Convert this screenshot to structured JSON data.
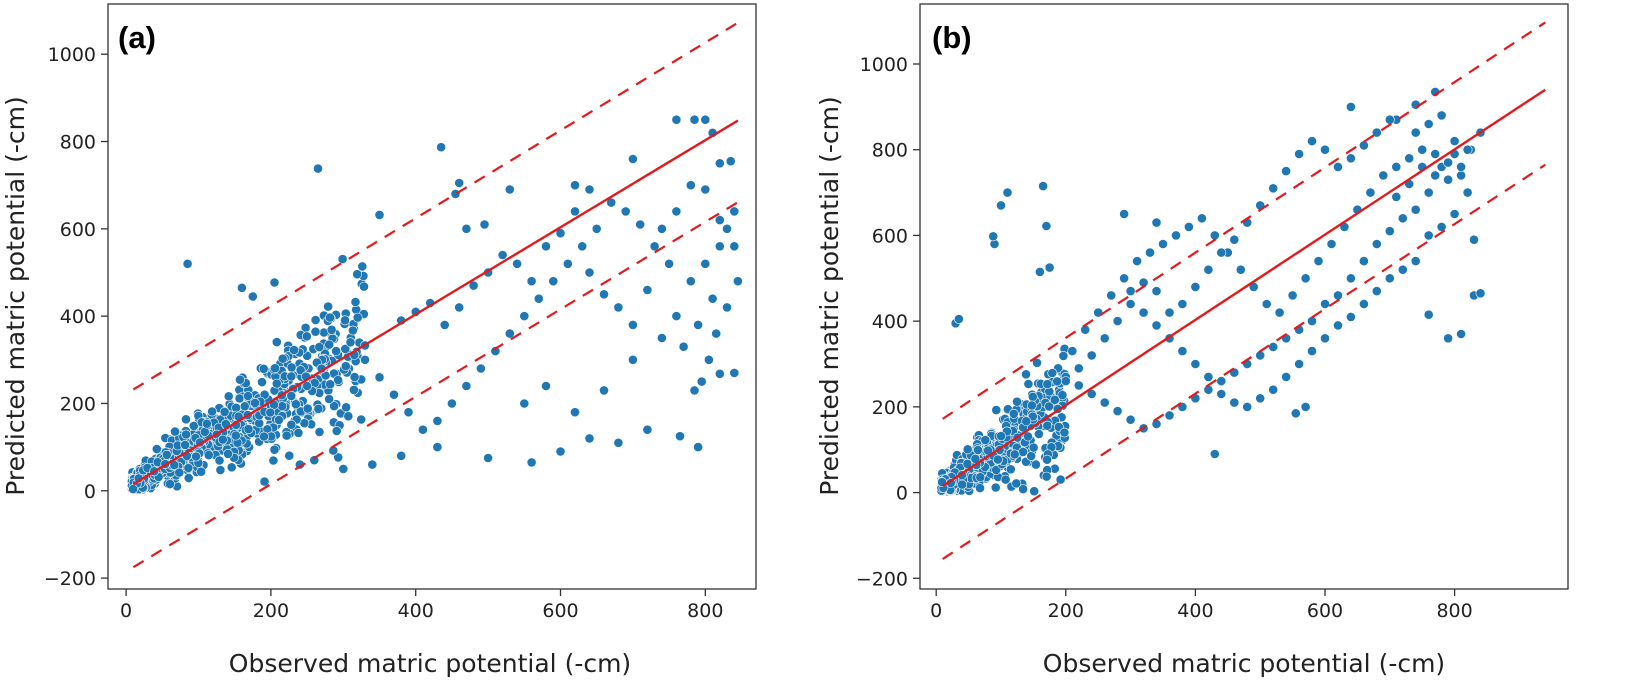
{
  "figure": {
    "colors": {
      "points": "#1f77b4",
      "fit_line": "#e31a1c",
      "bound_line": "#e31a1c"
    }
  },
  "chart_data": [
    {
      "type": "scatter",
      "panel_label": "(a)",
      "xlabel": "Observed matric potential (-cm)",
      "ylabel": "Predicted matric potential (-cm)",
      "xlim": [
        -25,
        870
      ],
      "ylim": [
        -225,
        1115
      ],
      "xticks": [
        0,
        200,
        400,
        600,
        800
      ],
      "yticks": [
        -200,
        0,
        200,
        400,
        600,
        800,
        1000
      ],
      "xtick_labels": [
        "0",
        "200",
        "400",
        "600",
        "800"
      ],
      "ytick_labels": [
        "−200",
        "0",
        "200",
        "400",
        "600",
        "800",
        "1000"
      ],
      "fit_line": {
        "x": [
          10,
          845
        ],
        "y": [
          15,
          848
        ]
      },
      "upper_bound": {
        "x": [
          10,
          850
        ],
        "y": [
          232,
          1077
        ]
      },
      "lower_bound": {
        "x": [
          10,
          850
        ],
        "y": [
          -175,
          666
        ]
      },
      "cluster_sample": {
        "x_range": [
          8,
          330
        ],
        "y_spread": 65,
        "n": 900
      },
      "highlight_points": [
        [
          85,
          520
        ],
        [
          265,
          738
        ],
        [
          435,
          787
        ],
        [
          460,
          705
        ],
        [
          455,
          680
        ],
        [
          350,
          632
        ],
        [
          160,
          465
        ],
        [
          205,
          477
        ],
        [
          175,
          445
        ],
        [
          470,
          600
        ],
        [
          495,
          610
        ],
        [
          530,
          690
        ],
        [
          620,
          700
        ],
        [
          640,
          690
        ],
        [
          700,
          760
        ],
        [
          760,
          850
        ],
        [
          785,
          850
        ],
        [
          800,
          850
        ],
        [
          810,
          820
        ],
        [
          820,
          750
        ],
        [
          835,
          755
        ],
        [
          790,
          100
        ],
        [
          765,
          125
        ],
        [
          820,
          268
        ],
        [
          840,
          270
        ],
        [
          720,
          140
        ],
        [
          560,
          65
        ],
        [
          500,
          75
        ],
        [
          430,
          100
        ],
        [
          380,
          80
        ],
        [
          340,
          60
        ],
        [
          300,
          50
        ],
        [
          260,
          70
        ],
        [
          240,
          60
        ],
        [
          600,
          90
        ],
        [
          640,
          120
        ],
        [
          680,
          110
        ],
        [
          550,
          200
        ],
        [
          580,
          240
        ],
        [
          620,
          180
        ],
        [
          660,
          230
        ],
        [
          700,
          300
        ],
        [
          740,
          350
        ],
        [
          760,
          400
        ],
        [
          780,
          480
        ],
        [
          800,
          520
        ],
        [
          820,
          560
        ],
        [
          830,
          600
        ],
        [
          840,
          640
        ],
        [
          810,
          440
        ],
        [
          790,
          380
        ],
        [
          770,
          330
        ],
        [
          750,
          520
        ],
        [
          730,
          560
        ],
        [
          710,
          610
        ],
        [
          690,
          640
        ],
        [
          670,
          660
        ],
        [
          650,
          600
        ],
        [
          630,
          560
        ],
        [
          610,
          520
        ],
        [
          590,
          480
        ],
        [
          570,
          440
        ],
        [
          550,
          400
        ],
        [
          530,
          360
        ],
        [
          510,
          320
        ],
        [
          490,
          280
        ],
        [
          470,
          240
        ],
        [
          450,
          200
        ],
        [
          430,
          160
        ],
        [
          410,
          140
        ],
        [
          390,
          180
        ],
        [
          370,
          220
        ],
        [
          350,
          260
        ],
        [
          330,
          300
        ],
        [
          310,
          340
        ],
        [
          290,
          320
        ],
        [
          270,
          280
        ],
        [
          250,
          240
        ],
        [
          380,
          390
        ],
        [
          400,
          410
        ],
        [
          420,
          430
        ],
        [
          440,
          380
        ],
        [
          460,
          420
        ],
        [
          480,
          470
        ],
        [
          500,
          500
        ],
        [
          520,
          540
        ],
        [
          540,
          520
        ],
        [
          560,
          480
        ],
        [
          580,
          560
        ],
        [
          600,
          590
        ],
        [
          620,
          640
        ],
        [
          640,
          500
        ],
        [
          660,
          450
        ],
        [
          680,
          420
        ],
        [
          700,
          380
        ],
        [
          720,
          460
        ],
        [
          740,
          600
        ],
        [
          760,
          640
        ],
        [
          780,
          700
        ],
        [
          800,
          690
        ],
        [
          820,
          620
        ],
        [
          840,
          560
        ],
        [
          845,
          480
        ],
        [
          830,
          420
        ],
        [
          815,
          360
        ],
        [
          805,
          300
        ],
        [
          795,
          250
        ],
        [
          785,
          230
        ]
      ]
    },
    {
      "type": "scatter",
      "panel_label": "(b)",
      "xlabel": "Observed matric potential (-cm)",
      "ylabel": "Predicted matric potential (-cm)",
      "xlim": [
        -25,
        975
      ],
      "ylim": [
        -225,
        1140
      ],
      "xticks": [
        0,
        200,
        400,
        600,
        800
      ],
      "yticks": [
        -200,
        0,
        200,
        400,
        600,
        800,
        1000
      ],
      "xtick_labels": [
        "0",
        "200",
        "400",
        "600",
        "800"
      ],
      "ytick_labels": [
        "−200",
        "0",
        "200",
        "400",
        "600",
        "800",
        "1000"
      ],
      "fit_line": {
        "x": [
          10,
          940
        ],
        "y": [
          15,
          940
        ]
      },
      "upper_bound": {
        "x": [
          10,
          940
        ],
        "y": [
          172,
          1097
        ]
      },
      "lower_bound": {
        "x": [
          10,
          940
        ],
        "y": [
          -155,
          765
        ]
      },
      "cluster_sample": {
        "x_range": [
          8,
          200
        ],
        "y_spread": 55,
        "n": 700
      },
      "highlight_points": [
        [
          30,
          395
        ],
        [
          35,
          405
        ],
        [
          90,
          580
        ],
        [
          88,
          598
        ],
        [
          100,
          670
        ],
        [
          110,
          700
        ],
        [
          165,
          715
        ],
        [
          170,
          622
        ],
        [
          175,
          525
        ],
        [
          160,
          515
        ],
        [
          290,
          650
        ],
        [
          340,
          630
        ],
        [
          640,
          900
        ],
        [
          740,
          905
        ],
        [
          770,
          935
        ],
        [
          710,
          870
        ],
        [
          430,
          90
        ],
        [
          555,
          185
        ],
        [
          570,
          200
        ],
        [
          760,
          415
        ],
        [
          790,
          360
        ],
        [
          810,
          370
        ],
        [
          830,
          460
        ],
        [
          840,
          465
        ],
        [
          830,
          590
        ],
        [
          840,
          840
        ],
        [
          825,
          800
        ],
        [
          800,
          790
        ],
        [
          780,
          760
        ],
        [
          760,
          700
        ],
        [
          740,
          660
        ],
        [
          720,
          640
        ],
        [
          700,
          610
        ],
        [
          680,
          580
        ],
        [
          660,
          540
        ],
        [
          640,
          500
        ],
        [
          620,
          460
        ],
        [
          600,
          440
        ],
        [
          580,
          400
        ],
        [
          560,
          380
        ],
        [
          540,
          360
        ],
        [
          520,
          340
        ],
        [
          500,
          320
        ],
        [
          480,
          300
        ],
        [
          460,
          280
        ],
        [
          440,
          260
        ],
        [
          420,
          240
        ],
        [
          400,
          220
        ],
        [
          380,
          200
        ],
        [
          360,
          180
        ],
        [
          340,
          160
        ],
        [
          320,
          150
        ],
        [
          300,
          170
        ],
        [
          280,
          190
        ],
        [
          260,
          210
        ],
        [
          240,
          230
        ],
        [
          220,
          250
        ],
        [
          200,
          270
        ],
        [
          210,
          330
        ],
        [
          230,
          380
        ],
        [
          250,
          420
        ],
        [
          270,
          460
        ],
        [
          290,
          500
        ],
        [
          310,
          540
        ],
        [
          330,
          560
        ],
        [
          350,
          580
        ],
        [
          370,
          600
        ],
        [
          390,
          620
        ],
        [
          410,
          640
        ],
        [
          430,
          600
        ],
        [
          450,
          560
        ],
        [
          470,
          520
        ],
        [
          490,
          480
        ],
        [
          510,
          440
        ],
        [
          530,
          420
        ],
        [
          550,
          460
        ],
        [
          570,
          500
        ],
        [
          590,
          540
        ],
        [
          610,
          580
        ],
        [
          630,
          620
        ],
        [
          650,
          660
        ],
        [
          670,
          700
        ],
        [
          690,
          740
        ],
        [
          710,
          760
        ],
        [
          730,
          780
        ],
        [
          750,
          800
        ],
        [
          770,
          790
        ],
        [
          790,
          770
        ],
        [
          810,
          740
        ],
        [
          820,
          700
        ],
        [
          800,
          650
        ],
        [
          780,
          620
        ],
        [
          760,
          600
        ],
        [
          740,
          540
        ],
        [
          720,
          520
        ],
        [
          700,
          500
        ],
        [
          680,
          470
        ],
        [
          660,
          440
        ],
        [
          640,
          410
        ],
        [
          620,
          390
        ],
        [
          600,
          360
        ],
        [
          580,
          330
        ],
        [
          560,
          300
        ],
        [
          540,
          270
        ],
        [
          520,
          240
        ],
        [
          500,
          220
        ],
        [
          480,
          200
        ],
        [
          460,
          210
        ],
        [
          440,
          230
        ],
        [
          420,
          270
        ],
        [
          400,
          300
        ],
        [
          380,
          330
        ],
        [
          360,
          360
        ],
        [
          340,
          390
        ],
        [
          320,
          420
        ],
        [
          300,
          440
        ],
        [
          280,
          400
        ],
        [
          260,
          360
        ],
        [
          240,
          320
        ],
        [
          220,
          290
        ],
        [
          200,
          260
        ],
        [
          600,
          800
        ],
        [
          620,
          760
        ],
        [
          580,
          820
        ],
        [
          560,
          790
        ],
        [
          540,
          750
        ],
        [
          520,
          710
        ],
        [
          500,
          670
        ],
        [
          480,
          630
        ],
        [
          460,
          590
        ],
        [
          440,
          560
        ],
        [
          420,
          520
        ],
        [
          400,
          480
        ],
        [
          380,
          440
        ],
        [
          360,
          420
        ],
        [
          340,
          470
        ],
        [
          320,
          490
        ],
        [
          300,
          470
        ],
        [
          700,
          870
        ],
        [
          680,
          840
        ],
        [
          660,
          810
        ],
        [
          640,
          780
        ],
        [
          740,
          840
        ],
        [
          760,
          860
        ],
        [
          780,
          880
        ],
        [
          800,
          820
        ],
        [
          820,
          800
        ],
        [
          810,
          760
        ],
        [
          790,
          730
        ],
        [
          770,
          740
        ],
        [
          750,
          760
        ],
        [
          730,
          720
        ],
        [
          710,
          690
        ]
      ]
    }
  ]
}
